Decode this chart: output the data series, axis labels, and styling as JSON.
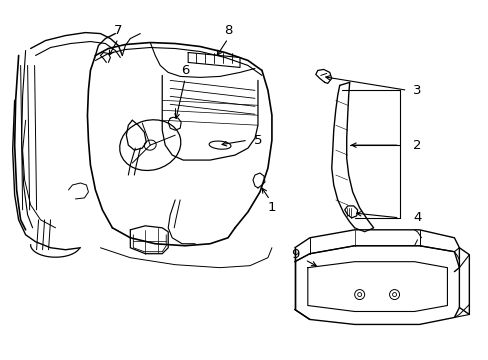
{
  "background_color": "#ffffff",
  "line_color": "#000000",
  "figsize": [
    4.89,
    3.6
  ],
  "dpi": 100,
  "label_fontsize": 9.5,
  "lw": 0.9
}
